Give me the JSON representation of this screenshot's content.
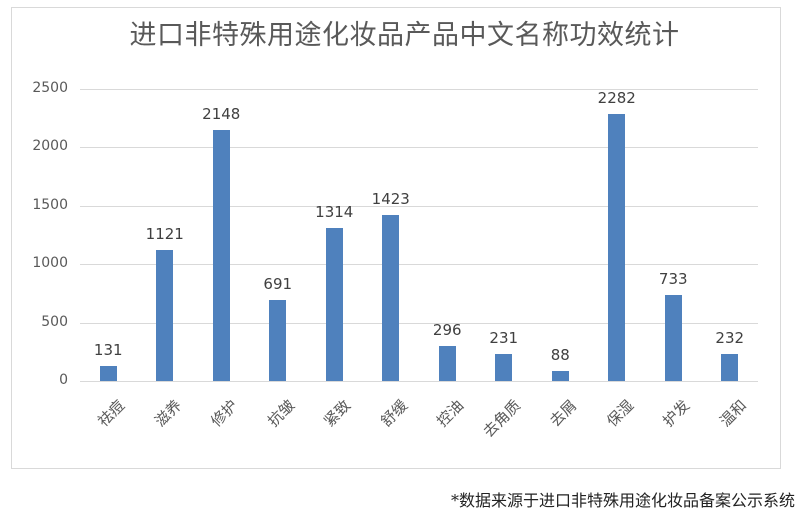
{
  "title": "进口非特殊用途化妆品产品中文名称功效统计",
  "footer": "*数据来源于进口非特殊用途化妆品备案公示系统",
  "colors": {
    "bar": "#4f81bd",
    "grid": "#d9d9d9",
    "text": "#595959"
  },
  "y_ticks": [
    "0",
    "500",
    "1000",
    "1500",
    "2000",
    "2500"
  ],
  "chart_data": {
    "type": "bar",
    "title": "进口非特殊用途化妆品产品中文名称功效统计",
    "categories": [
      "祛痘",
      "滋养",
      "修护",
      "抗皱",
      "紧致",
      "舒缓",
      "控油",
      "去角质",
      "去屑",
      "保湿",
      "护发",
      "温和"
    ],
    "values": [
      131,
      1121,
      2148,
      691,
      1314,
      1423,
      296,
      231,
      88,
      2282,
      733,
      232
    ],
    "xlabel": "",
    "ylabel": "",
    "ylim": [
      0,
      2500
    ],
    "yticks": [
      0,
      500,
      1000,
      1500,
      2000,
      2500
    ],
    "grid": true,
    "data_labels": true,
    "legend": "none",
    "note": "*数据来源于进口非特殊用途化妆品备案公示系统"
  }
}
